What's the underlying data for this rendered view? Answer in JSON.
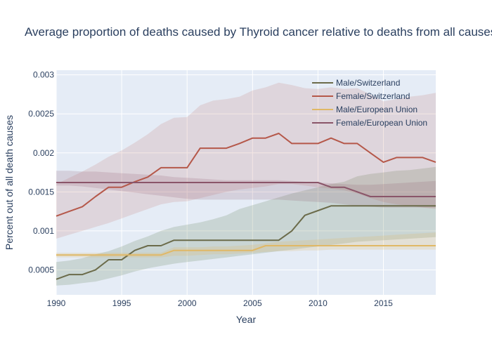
{
  "chart_data": {
    "type": "line",
    "title": "Average proportion of deaths caused by Thyroid cancer relative to deaths from all causes",
    "xlabel": "Year",
    "ylabel": "Percent out of all death causes",
    "xlim": [
      1990,
      2019
    ],
    "ylim": [
      0.00018,
      0.00306
    ],
    "x_ticks": [
      1990,
      1995,
      2000,
      2005,
      2010,
      2015
    ],
    "y_ticks": [
      0.0005,
      0.001,
      0.0015,
      0.002,
      0.0025,
      0.003
    ],
    "y_tick_labels": [
      "0.0005",
      "0.001",
      "0.0015",
      "0.002",
      "0.0025",
      "0.003"
    ],
    "grid": true,
    "legend_position": "top-right",
    "plot_background": "#e5ecf6",
    "x": [
      1990,
      1991,
      1992,
      1993,
      1994,
      1995,
      1996,
      1997,
      1998,
      1999,
      2000,
      2001,
      2002,
      2003,
      2004,
      2005,
      2006,
      2007,
      2008,
      2009,
      2010,
      2011,
      2012,
      2013,
      2014,
      2015,
      2016,
      2017,
      2018,
      2019
    ],
    "series": [
      {
        "name": "Male/Switzerland",
        "color": "#6b6b4a",
        "band_color": "rgba(107,130,90,0.22)",
        "values": [
          0.00038,
          0.00044,
          0.00044,
          0.0005,
          0.00063,
          0.00063,
          0.00075,
          0.00081,
          0.00081,
          0.00088,
          0.00088,
          0.00088,
          0.00088,
          0.00088,
          0.00088,
          0.00088,
          0.00088,
          0.00088,
          0.001,
          0.0012,
          0.00126,
          0.00132,
          0.00132,
          0.00132,
          0.00132,
          0.00132,
          0.00132,
          0.00132,
          0.00132,
          0.00132
        ],
        "lower": [
          0.0003,
          0.00031,
          0.00033,
          0.00035,
          0.00039,
          0.00043,
          0.00048,
          0.00052,
          0.00055,
          0.00058,
          0.0006,
          0.00062,
          0.00064,
          0.00066,
          0.00068,
          0.0007,
          0.00072,
          0.00074,
          0.00076,
          0.00078,
          0.0008,
          0.00082,
          0.00084,
          0.00086,
          0.00087,
          0.00088,
          0.00089,
          0.0009,
          0.00091,
          0.00092
        ],
        "upper": [
          0.0006,
          0.00062,
          0.00065,
          0.0007,
          0.00074,
          0.0008,
          0.00087,
          0.00093,
          0.001,
          0.00105,
          0.00108,
          0.00111,
          0.00115,
          0.0012,
          0.00128,
          0.00133,
          0.00138,
          0.00143,
          0.00148,
          0.00152,
          0.00156,
          0.0016,
          0.00163,
          0.0017,
          0.00173,
          0.00175,
          0.00177,
          0.00178,
          0.0018,
          0.00182
        ]
      },
      {
        "name": "Female/Switzerland",
        "color": "#b5584a",
        "band_color": "rgba(181,88,74,0.15)",
        "values": [
          0.00119,
          0.00125,
          0.00131,
          0.00144,
          0.00156,
          0.00156,
          0.00163,
          0.00169,
          0.00181,
          0.00181,
          0.00181,
          0.00206,
          0.00206,
          0.00206,
          0.00212,
          0.00219,
          0.00219,
          0.00225,
          0.00212,
          0.00212,
          0.00212,
          0.00219,
          0.00212,
          0.00212,
          0.002,
          0.00188,
          0.00194,
          0.00194,
          0.00194,
          0.00188
        ],
        "lower": [
          0.0009,
          0.00095,
          0.001,
          0.00105,
          0.0011,
          0.00116,
          0.00122,
          0.00128,
          0.00134,
          0.00137,
          0.00138,
          0.00142,
          0.00146,
          0.0015,
          0.00153,
          0.00155,
          0.00157,
          0.0016,
          0.0016,
          0.00158,
          0.00156,
          0.00154,
          0.00152,
          0.00148,
          0.00142,
          0.00137,
          0.00134,
          0.00132,
          0.0013,
          0.00128
        ],
        "upper": [
          0.0016,
          0.00168,
          0.00176,
          0.00185,
          0.00195,
          0.00203,
          0.00213,
          0.00224,
          0.00237,
          0.00245,
          0.00246,
          0.00261,
          0.00267,
          0.00269,
          0.00272,
          0.0028,
          0.00284,
          0.0029,
          0.00287,
          0.00283,
          0.00282,
          0.00284,
          0.00282,
          0.00283,
          0.00275,
          0.00266,
          0.00269,
          0.00272,
          0.00274,
          0.00277
        ]
      },
      {
        "name": "Male/European Union",
        "color": "#e0b866",
        "band_color": "rgba(224,184,102,0.22)",
        "values": [
          0.00069,
          0.00069,
          0.00069,
          0.00069,
          0.00069,
          0.00069,
          0.00069,
          0.00069,
          0.00069,
          0.00075,
          0.00075,
          0.00075,
          0.00075,
          0.00075,
          0.00075,
          0.00075,
          0.00081,
          0.00081,
          0.00081,
          0.00081,
          0.00081,
          0.00081,
          0.00081,
          0.00081,
          0.00081,
          0.00081,
          0.00081,
          0.00081,
          0.00081,
          0.00081
        ],
        "lower": [
          0.00066,
          0.00066,
          0.00066,
          0.00066,
          0.00066,
          0.00066,
          0.00066,
          0.00066,
          0.00066,
          0.00068,
          0.00068,
          0.00069,
          0.0007,
          0.0007,
          0.00071,
          0.00072,
          0.00073,
          0.00074,
          0.00074,
          0.00075,
          0.00075,
          0.00076,
          0.00076,
          0.00076,
          0.00076,
          0.00076,
          0.00076,
          0.00076,
          0.00076,
          0.00076
        ],
        "upper": [
          0.00072,
          0.00072,
          0.00072,
          0.00072,
          0.00072,
          0.00072,
          0.00072,
          0.00072,
          0.00072,
          0.00079,
          0.00079,
          0.00079,
          0.0008,
          0.0008,
          0.00081,
          0.00082,
          0.00084,
          0.00086,
          0.00087,
          0.00088,
          0.00089,
          0.0009,
          0.00091,
          0.00092,
          0.00093,
          0.00094,
          0.00095,
          0.00096,
          0.00097,
          0.00098
        ]
      },
      {
        "name": "Female/European Union",
        "color": "#8a5569",
        "band_color": "rgba(138,85,105,0.18)",
        "values": [
          0.00162,
          0.00162,
          0.00162,
          0.00162,
          0.00162,
          0.00162,
          0.00162,
          0.00162,
          0.00162,
          0.00162,
          0.00162,
          0.00162,
          0.00162,
          0.00162,
          0.00162,
          0.00162,
          0.00162,
          0.00162,
          0.00162,
          0.00162,
          0.00162,
          0.00156,
          0.00156,
          0.0015,
          0.00144,
          0.00144,
          0.00144,
          0.00144,
          0.00144,
          0.00144
        ],
        "lower": [
          0.00158,
          0.00158,
          0.00157,
          0.00155,
          0.00153,
          0.00151,
          0.00149,
          0.00147,
          0.00145,
          0.00143,
          0.00141,
          0.0014,
          0.0014,
          0.0014,
          0.0014,
          0.0014,
          0.0014,
          0.0014,
          0.00139,
          0.00138,
          0.00137,
          0.00136,
          0.00134,
          0.00132,
          0.00131,
          0.0013,
          0.0013,
          0.0013,
          0.0013,
          0.0013
        ],
        "upper": [
          0.00177,
          0.00177,
          0.00176,
          0.00176,
          0.00175,
          0.00174,
          0.00173,
          0.00172,
          0.00171,
          0.00169,
          0.00168,
          0.00167,
          0.00166,
          0.00165,
          0.00165,
          0.00165,
          0.00165,
          0.00165,
          0.00164,
          0.00163,
          0.00162,
          0.00161,
          0.0016,
          0.00159,
          0.00159,
          0.0016,
          0.00161,
          0.00162,
          0.00163,
          0.00164
        ]
      }
    ]
  }
}
